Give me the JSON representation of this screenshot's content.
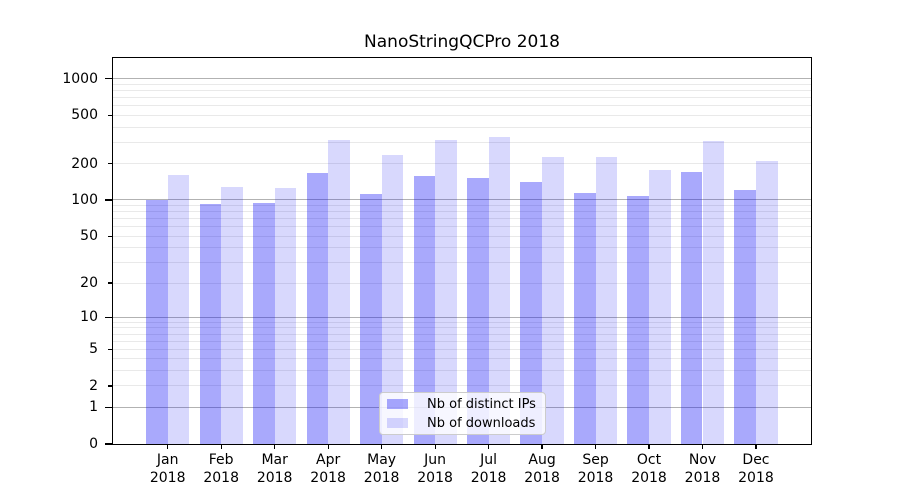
{
  "chart_data": {
    "type": "bar",
    "title": "NanoStringQCPro 2018",
    "categories": [
      "Jan",
      "Feb",
      "Mar",
      "Apr",
      "May",
      "Jun",
      "Jul",
      "Aug",
      "Sep",
      "Oct",
      "Nov",
      "Dec"
    ],
    "category_year": "2018",
    "series": [
      {
        "name": "Nb of distinct IPs",
        "color": "rgba(10,10,245,0.35)",
        "color_hex_on_white": "#a9a9f8",
        "values": [
          100,
          92,
          94,
          167,
          112,
          157,
          151,
          142,
          114,
          108,
          170,
          121
        ]
      },
      {
        "name": "Nb of downloads",
        "color": "rgba(10,10,245,0.16)",
        "color_hex_on_white": "#dadaf9",
        "values": [
          160,
          127,
          125,
          315,
          235,
          315,
          330,
          227,
          226,
          176,
          308,
          210
        ]
      }
    ],
    "yscale": "log1p",
    "ylim": [
      0,
      1480
    ],
    "ytick_labels": [
      0,
      1,
      2,
      5,
      10,
      20,
      50,
      100,
      200,
      500,
      1000
    ],
    "major_ticks": [
      0,
      1,
      10,
      100,
      1000
    ],
    "major_gridlines": [
      1,
      10,
      100,
      1000
    ],
    "minor_gridlines": [
      2,
      3,
      4,
      5,
      6,
      7,
      8,
      9,
      20,
      30,
      40,
      50,
      60,
      70,
      80,
      90,
      200,
      300,
      400,
      500,
      600,
      700,
      800,
      900
    ],
    "grid_major_color": "#b2b2b2",
    "grid_minor_color": "#e9e9e9",
    "legend_position": "lower center",
    "xlabel": "",
    "ylabel": ""
  }
}
